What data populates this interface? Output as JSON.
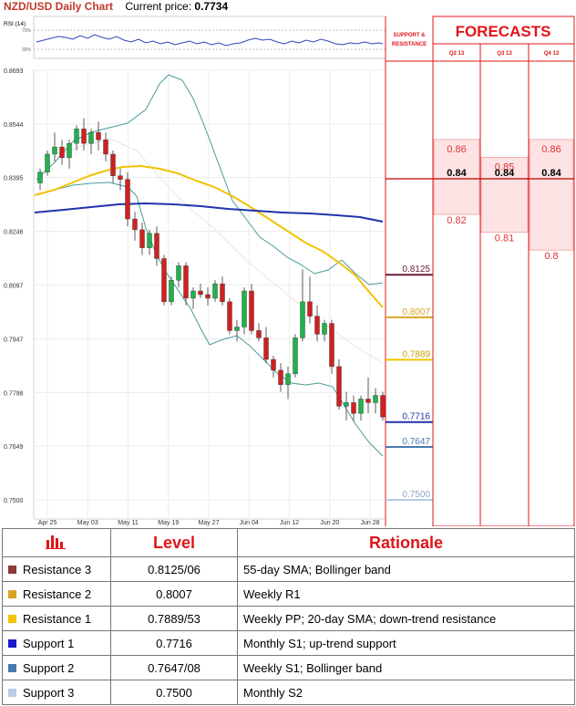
{
  "header": {
    "title": "NZD/USD Daily Chart",
    "price_label": "Current price:",
    "price_value": "0.7734"
  },
  "rsi": {
    "label": "RSI (14)",
    "tick_top": "70%",
    "tick_bottom": "30%"
  },
  "chart_data": {
    "type": "candlestick",
    "y_ticks": [
      "0.8693",
      "0.8544",
      "0.8395",
      "0.8246",
      "0.8097",
      "0.7947",
      "0.7798",
      "0.7649",
      "0.7500"
    ],
    "x_ticks": [
      "Apr 25",
      "May 03",
      "May 11",
      "May 19",
      "May 27",
      "Jun 04",
      "Jun 12",
      "Jun 20",
      "Jun 28"
    ],
    "ylim": [
      0.75,
      0.8693
    ],
    "ohlc": [
      [
        0.838,
        0.842,
        0.836,
        0.841
      ],
      [
        0.841,
        0.847,
        0.84,
        0.846
      ],
      [
        0.846,
        0.852,
        0.844,
        0.848
      ],
      [
        0.848,
        0.85,
        0.843,
        0.845
      ],
      [
        0.845,
        0.85,
        0.842,
        0.849
      ],
      [
        0.849,
        0.854,
        0.847,
        0.853
      ],
      [
        0.853,
        0.856,
        0.847,
        0.849
      ],
      [
        0.849,
        0.853,
        0.846,
        0.852
      ],
      [
        0.852,
        0.855,
        0.847,
        0.85
      ],
      [
        0.85,
        0.852,
        0.844,
        0.846
      ],
      [
        0.846,
        0.847,
        0.838,
        0.84
      ],
      [
        0.84,
        0.842,
        0.836,
        0.839
      ],
      [
        0.839,
        0.841,
        0.826,
        0.828
      ],
      [
        0.828,
        0.83,
        0.822,
        0.825
      ],
      [
        0.825,
        0.827,
        0.818,
        0.82
      ],
      [
        0.82,
        0.825,
        0.818,
        0.824
      ],
      [
        0.824,
        0.826,
        0.815,
        0.817
      ],
      [
        0.817,
        0.818,
        0.804,
        0.805
      ],
      [
        0.805,
        0.812,
        0.804,
        0.811
      ],
      [
        0.811,
        0.816,
        0.809,
        0.815
      ],
      [
        0.815,
        0.816,
        0.804,
        0.806
      ],
      [
        0.806,
        0.809,
        0.803,
        0.808
      ],
      [
        0.808,
        0.81,
        0.806,
        0.807
      ],
      [
        0.807,
        0.809,
        0.804,
        0.806
      ],
      [
        0.806,
        0.811,
        0.805,
        0.81
      ],
      [
        0.81,
        0.812,
        0.804,
        0.805
      ],
      [
        0.805,
        0.806,
        0.796,
        0.797
      ],
      [
        0.797,
        0.8,
        0.794,
        0.798
      ],
      [
        0.798,
        0.809,
        0.796,
        0.808
      ],
      [
        0.808,
        0.81,
        0.796,
        0.797
      ],
      [
        0.797,
        0.799,
        0.794,
        0.795
      ],
      [
        0.795,
        0.798,
        0.788,
        0.789
      ],
      [
        0.789,
        0.79,
        0.784,
        0.786
      ],
      [
        0.786,
        0.788,
        0.78,
        0.782
      ],
      [
        0.782,
        0.787,
        0.778,
        0.785
      ],
      [
        0.785,
        0.796,
        0.784,
        0.795
      ],
      [
        0.795,
        0.814,
        0.794,
        0.805
      ],
      [
        0.805,
        0.812,
        0.799,
        0.801
      ],
      [
        0.801,
        0.804,
        0.794,
        0.796
      ],
      [
        0.796,
        0.8,
        0.794,
        0.799
      ],
      [
        0.799,
        0.8,
        0.785,
        0.787
      ],
      [
        0.787,
        0.789,
        0.775,
        0.776
      ],
      [
        0.776,
        0.78,
        0.772,
        0.777
      ],
      [
        0.777,
        0.779,
        0.772,
        0.774
      ],
      [
        0.774,
        0.779,
        0.772,
        0.778
      ],
      [
        0.778,
        0.784,
        0.774,
        0.777
      ],
      [
        0.777,
        0.781,
        0.774,
        0.779
      ],
      [
        0.779,
        0.78,
        0.772,
        0.773
      ]
    ]
  },
  "support_resistance": {
    "header_line1": "SUPPORT &",
    "header_line2": "RESISTANCE",
    "levels": [
      {
        "value": "0.8125",
        "color": "#6b1a3a"
      },
      {
        "value": "0.8007",
        "color": "#d9a521"
      },
      {
        "value": "0.7889",
        "color": "#f2c500"
      },
      {
        "value": "0.7716",
        "color": "#2233aa"
      },
      {
        "value": "0.7647",
        "color": "#4a7ab0"
      },
      {
        "value": "0.7500",
        "color": "#b8cde6"
      }
    ]
  },
  "forecasts": {
    "title": "FORECASTS",
    "columns": [
      {
        "label": "Q2 13",
        "values": [
          "0.86",
          "0.84",
          "0.82"
        ]
      },
      {
        "label": "Q3 13",
        "values": [
          "0.85",
          "0.84",
          "0.81"
        ]
      },
      {
        "label": "Q4 13",
        "values": [
          "0.86",
          "0.84",
          "0.8"
        ]
      }
    ]
  },
  "levels_table": {
    "headers": {
      "level": "Level",
      "rationale": "Rationale"
    },
    "rows": [
      {
        "name": "Resistance 3",
        "level": "0.8125/06",
        "rationale": "55-day SMA; Bollinger band",
        "color": "#8b3a3a"
      },
      {
        "name": "Resistance 2",
        "level": "0.8007",
        "rationale": "Weekly R1",
        "color": "#d9a521"
      },
      {
        "name": "Resistance 1",
        "level": "0.7889/53",
        "rationale": "Weekly PP; 20-day SMA; down-trend resistance",
        "color": "#f5c400"
      },
      {
        "name": "Support 1",
        "level": "0.7716",
        "rationale": "Monthly S1; up-trend support",
        "color": "#1a1acc"
      },
      {
        "name": "Support 2",
        "level": "0.7647/08",
        "rationale": "Weekly S1; Bollinger band",
        "color": "#4a7ab0"
      },
      {
        "name": "Support 3",
        "level": "0.7500",
        "rationale": "Monthly S2",
        "color": "#b8cde6"
      }
    ]
  },
  "colors": {
    "up": "#22b14c",
    "down": "#d02020",
    "red_accent": "#e0151a",
    "forecast_fill": "#fde3e3"
  }
}
